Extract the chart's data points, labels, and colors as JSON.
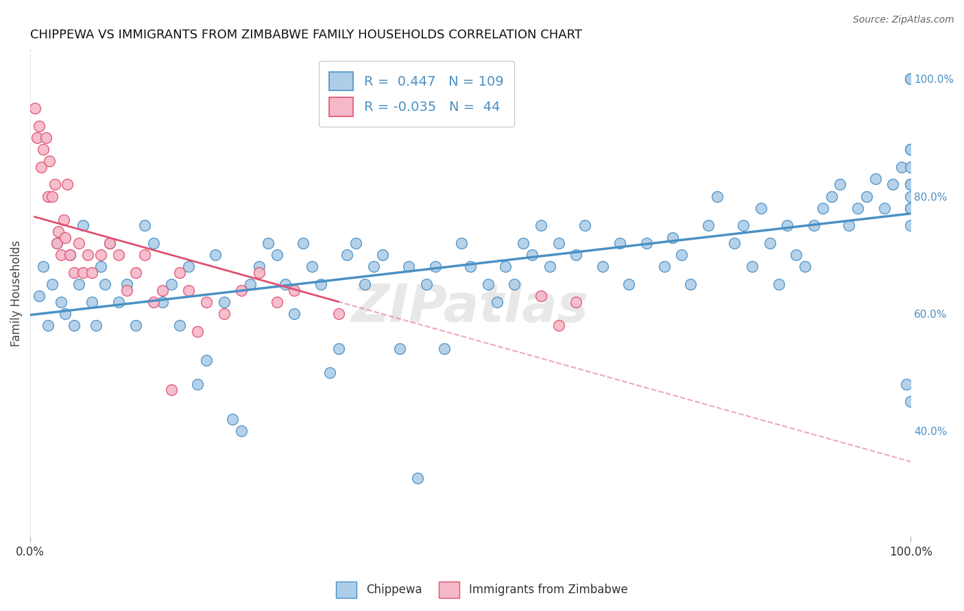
{
  "title": "CHIPPEWA VS IMMIGRANTS FROM ZIMBABWE FAMILY HOUSEHOLDS CORRELATION CHART",
  "source": "Source: ZipAtlas.com",
  "ylabel": "Family Households",
  "chippewa_R": 0.447,
  "chippewa_N": 109,
  "zimbabwe_R": -0.035,
  "zimbabwe_N": 44,
  "chippewa_color": "#aecde8",
  "zimbabwe_color": "#f5b8c8",
  "chippewa_line_color": "#4a90c4",
  "zimbabwe_line_color": "#e05070",
  "chippewa_x": [
    1.0,
    1.5,
    2.0,
    2.5,
    3.0,
    3.5,
    4.0,
    4.5,
    5.0,
    5.5,
    6.0,
    7.0,
    7.5,
    8.0,
    8.5,
    9.0,
    10.0,
    11.0,
    12.0,
    13.0,
    14.0,
    15.0,
    16.0,
    17.0,
    18.0,
    19.0,
    20.0,
    21.0,
    22.0,
    23.0,
    24.0,
    25.0,
    26.0,
    27.0,
    28.0,
    29.0,
    30.0,
    31.0,
    32.0,
    33.0,
    34.0,
    35.0,
    36.0,
    37.0,
    38.0,
    39.0,
    40.0,
    42.0,
    43.0,
    44.0,
    45.0,
    46.0,
    47.0,
    49.0,
    50.0,
    52.0,
    53.0,
    54.0,
    55.0,
    56.0,
    57.0,
    58.0,
    59.0,
    60.0,
    62.0,
    63.0,
    65.0,
    67.0,
    68.0,
    70.0,
    72.0,
    73.0,
    74.0,
    75.0,
    77.0,
    78.0,
    80.0,
    81.0,
    82.0,
    83.0,
    84.0,
    85.0,
    86.0,
    87.0,
    88.0,
    89.0,
    90.0,
    91.0,
    92.0,
    93.0,
    94.0,
    95.0,
    96.0,
    97.0,
    98.0,
    99.0,
    99.5,
    100.0,
    100.0,
    100.0,
    100.0,
    100.0,
    100.0,
    100.0,
    100.0,
    100.0,
    100.0,
    100.0,
    100.0
  ],
  "chippewa_y": [
    63.0,
    68.0,
    58.0,
    65.0,
    72.0,
    62.0,
    60.0,
    70.0,
    58.0,
    65.0,
    75.0,
    62.0,
    58.0,
    68.0,
    65.0,
    72.0,
    62.0,
    65.0,
    58.0,
    75.0,
    72.0,
    62.0,
    65.0,
    58.0,
    68.0,
    48.0,
    52.0,
    70.0,
    62.0,
    42.0,
    40.0,
    65.0,
    68.0,
    72.0,
    70.0,
    65.0,
    60.0,
    72.0,
    68.0,
    65.0,
    50.0,
    54.0,
    70.0,
    72.0,
    65.0,
    68.0,
    70.0,
    54.0,
    68.0,
    32.0,
    65.0,
    68.0,
    54.0,
    72.0,
    68.0,
    65.0,
    62.0,
    68.0,
    65.0,
    72.0,
    70.0,
    75.0,
    68.0,
    72.0,
    70.0,
    75.0,
    68.0,
    72.0,
    65.0,
    72.0,
    68.0,
    73.0,
    70.0,
    65.0,
    75.0,
    80.0,
    72.0,
    75.0,
    68.0,
    78.0,
    72.0,
    65.0,
    75.0,
    70.0,
    68.0,
    75.0,
    78.0,
    80.0,
    82.0,
    75.0,
    78.0,
    80.0,
    83.0,
    78.0,
    82.0,
    85.0,
    48.0,
    100.0,
    100.0,
    88.0,
    80.0,
    75.0,
    78.0,
    82.0,
    88.0,
    85.0,
    78.0,
    82.0,
    45.0
  ],
  "zimbabwe_x": [
    0.5,
    0.8,
    1.0,
    1.2,
    1.5,
    1.8,
    2.0,
    2.2,
    2.5,
    2.8,
    3.0,
    3.2,
    3.5,
    3.8,
    4.0,
    4.2,
    4.5,
    5.0,
    5.5,
    6.0,
    6.5,
    7.0,
    8.0,
    9.0,
    10.0,
    11.0,
    12.0,
    13.0,
    14.0,
    15.0,
    16.0,
    17.0,
    18.0,
    19.0,
    20.0,
    22.0,
    24.0,
    26.0,
    28.0,
    30.0,
    35.0,
    58.0,
    60.0,
    62.0
  ],
  "zimbabwe_y": [
    95.0,
    90.0,
    92.0,
    85.0,
    88.0,
    90.0,
    80.0,
    86.0,
    80.0,
    82.0,
    72.0,
    74.0,
    70.0,
    76.0,
    73.0,
    82.0,
    70.0,
    67.0,
    72.0,
    67.0,
    70.0,
    67.0,
    70.0,
    72.0,
    70.0,
    64.0,
    67.0,
    70.0,
    62.0,
    64.0,
    47.0,
    67.0,
    64.0,
    57.0,
    62.0,
    60.0,
    64.0,
    67.0,
    62.0,
    64.0,
    60.0,
    63.0,
    58.0,
    62.0
  ],
  "background_color": "#ffffff",
  "grid_color": "#cccccc",
  "xlim": [
    0,
    100
  ],
  "ylim": [
    22,
    105
  ],
  "right_ytick_vals": [
    40,
    60,
    80,
    100
  ],
  "right_yticklabels": [
    "40.0%",
    "60.0%",
    "80.0%",
    "100.0%"
  ],
  "watermark": "ZIPatlas"
}
